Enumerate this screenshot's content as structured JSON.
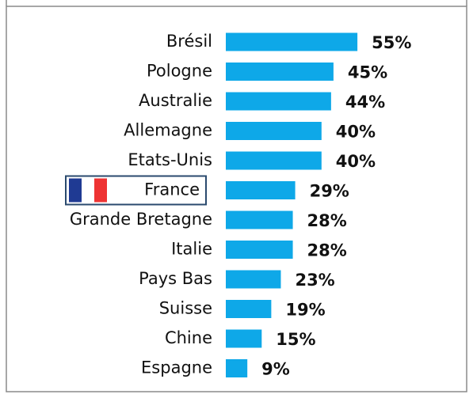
{
  "chart_data": {
    "type": "bar",
    "orientation": "horizontal",
    "color": "#0ea8e8",
    "categories": [
      "Brésil",
      "Pologne",
      "Australie",
      "Allemagne",
      "Etats-Unis",
      "France",
      "Grande Bretagne",
      "Italie",
      "Pays Bas",
      "Suisse",
      "Chine",
      "Espagne"
    ],
    "values": [
      55,
      45,
      44,
      40,
      40,
      29,
      28,
      28,
      23,
      19,
      15,
      9
    ],
    "value_labels": [
      "55%",
      "45%",
      "44%",
      "40%",
      "40%",
      "29%",
      "28%",
      "28%",
      "23%",
      "19%",
      "15%",
      "9%"
    ]
  }
}
